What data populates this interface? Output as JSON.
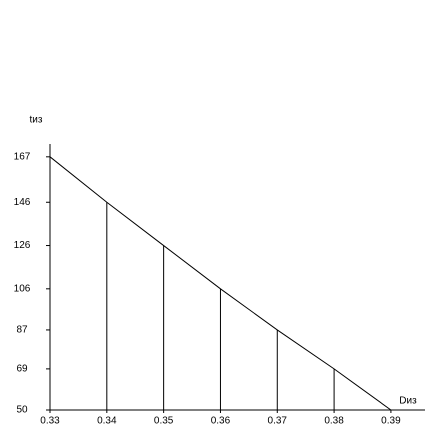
{
  "chart_data": {
    "type": "line",
    "y_label": "tиз",
    "x_label": "Dиз",
    "x": [
      0.33,
      0.34,
      0.35,
      0.36,
      0.37,
      0.38,
      0.39
    ],
    "values": [
      167,
      146,
      126,
      106,
      87,
      69,
      50
    ],
    "color": "#000000",
    "xlim": [
      0.33,
      0.396
    ],
    "xticks": [
      0.33,
      0.34,
      0.35,
      0.36,
      0.37,
      0.38,
      0.39
    ],
    "ylim": [
      50,
      172
    ],
    "yticks": [
      167,
      146,
      126,
      106,
      87,
      69,
      50
    ],
    "drop_lines": true
  }
}
